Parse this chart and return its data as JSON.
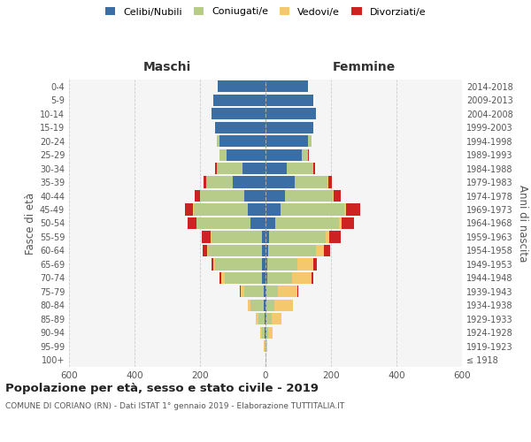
{
  "age_groups": [
    "100+",
    "95-99",
    "90-94",
    "85-89",
    "80-84",
    "75-79",
    "70-74",
    "65-69",
    "60-64",
    "55-59",
    "50-54",
    "45-49",
    "40-44",
    "35-39",
    "30-34",
    "25-29",
    "20-24",
    "15-19",
    "10-14",
    "5-9",
    "0-4"
  ],
  "birth_years": [
    "≤ 1918",
    "1919-1923",
    "1924-1928",
    "1929-1933",
    "1934-1938",
    "1939-1943",
    "1944-1948",
    "1949-1953",
    "1954-1958",
    "1959-1963",
    "1964-1968",
    "1969-1973",
    "1974-1978",
    "1979-1983",
    "1984-1988",
    "1989-1993",
    "1994-1998",
    "1999-2003",
    "2004-2008",
    "2009-2013",
    "2014-2018"
  ],
  "males": {
    "celibi": [
      0,
      1,
      2,
      3,
      5,
      5,
      10,
      10,
      12,
      10,
      45,
      55,
      65,
      100,
      70,
      120,
      140,
      155,
      165,
      160,
      145
    ],
    "coniugati": [
      0,
      3,
      8,
      18,
      40,
      60,
      115,
      145,
      165,
      155,
      165,
      165,
      135,
      80,
      80,
      20,
      10,
      0,
      0,
      0,
      0
    ],
    "vedovi": [
      0,
      1,
      5,
      8,
      10,
      10,
      10,
      5,
      2,
      2,
      1,
      1,
      1,
      0,
      0,
      0,
      0,
      0,
      0,
      0,
      0
    ],
    "divorziati": [
      0,
      0,
      0,
      0,
      0,
      3,
      5,
      5,
      12,
      28,
      28,
      25,
      15,
      10,
      3,
      0,
      0,
      0,
      0,
      0,
      0
    ]
  },
  "females": {
    "nubili": [
      0,
      1,
      2,
      3,
      3,
      3,
      5,
      6,
      8,
      10,
      30,
      45,
      60,
      90,
      65,
      110,
      130,
      145,
      155,
      145,
      130
    ],
    "coniugate": [
      0,
      2,
      5,
      15,
      25,
      35,
      75,
      90,
      145,
      175,
      195,
      195,
      145,
      100,
      80,
      20,
      10,
      0,
      0,
      0,
      0
    ],
    "vedove": [
      1,
      3,
      15,
      30,
      55,
      60,
      60,
      50,
      25,
      10,
      8,
      5,
      2,
      1,
      0,
      0,
      0,
      0,
      0,
      0,
      0
    ],
    "divorziate": [
      0,
      0,
      0,
      0,
      0,
      3,
      5,
      10,
      20,
      35,
      38,
      45,
      22,
      12,
      5,
      2,
      0,
      0,
      0,
      0,
      0
    ]
  },
  "colors": {
    "celibi_nubili": "#3a6ea5",
    "coniugati_e": "#b8cc8a",
    "vedovi_e": "#f5c86e",
    "divorziati_e": "#cc2222"
  },
  "title": "Popolazione per età, sesso e stato civile - 2019",
  "subtitle": "COMUNE DI CORIANO (RN) - Dati ISTAT 1° gennaio 2019 - Elaborazione TUTTITALIA.IT",
  "xlabel_left": "Maschi",
  "xlabel_right": "Femmine",
  "ylabel_left": "Fasce di età",
  "ylabel_right": "Anni di nascita",
  "xlim": 600,
  "bg_color": "#ffffff",
  "plot_bg_color": "#f5f5f5",
  "grid_color": "#cccccc",
  "legend_labels": [
    "Celibi/Nubili",
    "Coniugati/e",
    "Vedovi/e",
    "Divorziati/e"
  ]
}
